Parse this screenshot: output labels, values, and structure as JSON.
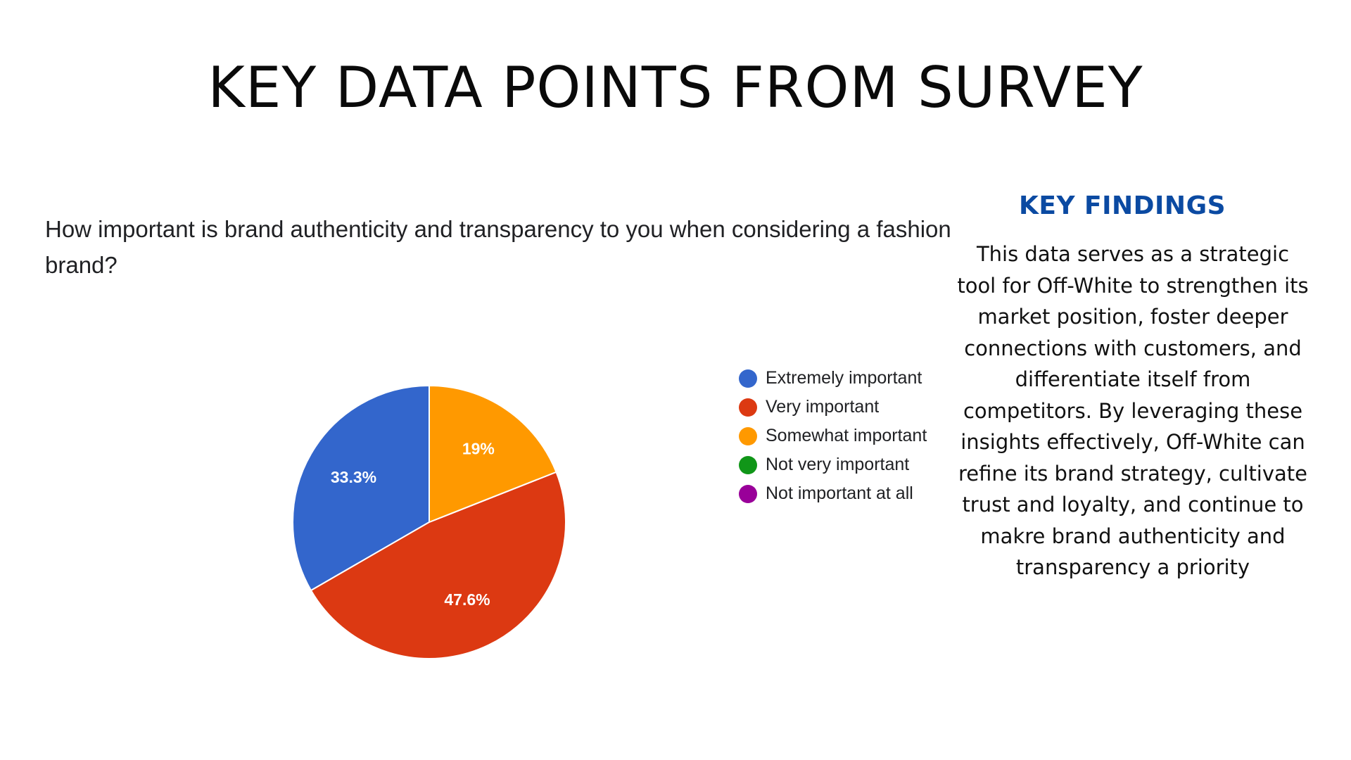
{
  "page": {
    "title": "KEY DATA POINTS FROM SURVEY"
  },
  "findings": {
    "heading": "KEY FINDINGS",
    "body": "This data serves as a strategic tool for Off-White to strengthen its market position, foster deeper connections with customers, and differentiate itself from competitors. By leveraging these insights effectively, Off-White can refine its brand strategy, cultivate trust and loyalty, and continue to makre brand authenticity and transparency a priority"
  },
  "chart_data": {
    "type": "pie",
    "title": "How important is brand authenticity and transparency to you when considering a fashion brand?",
    "categories": [
      "Extremely important",
      "Very important",
      "Somewhat important",
      "Not very important",
      "Not important at all"
    ],
    "values": [
      33.3,
      47.6,
      19,
      0,
      0
    ],
    "data_labels": [
      "33.3%",
      "47.6%",
      "19%",
      "",
      ""
    ],
    "colors": [
      "#3366cc",
      "#dc3912",
      "#ff9900",
      "#109618",
      "#990099"
    ],
    "legend_position": "right",
    "start_angle_deg": 90,
    "direction": "counterclockwise"
  }
}
